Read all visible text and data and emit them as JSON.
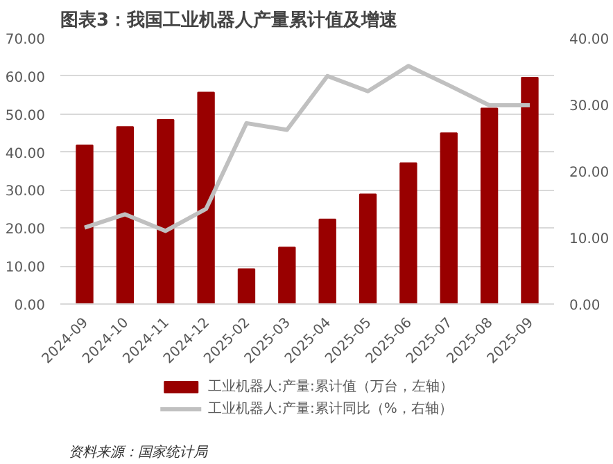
{
  "chart_data": {
    "type": "bar",
    "title": "图表3：我国工业机器人产量累计值及增速",
    "categories": [
      "2024-09",
      "2024-10",
      "2024-11",
      "2024-12",
      "2025-02",
      "2025-03",
      "2025-04",
      "2025-05",
      "2025-06",
      "2025-07",
      "2025-08",
      "2025-09"
    ],
    "series": [
      {
        "name": "工业机器人:产量:累计值（万台，左轴）",
        "color": "#990000",
        "values": [
          41.8,
          46.6,
          48.5,
          55.7,
          9.2,
          14.9,
          22.3,
          28.9,
          37.1,
          45.0,
          51.5,
          59.6
        ]
      },
      {
        "name": "工业机器人:产量:累计同比（%，右轴）",
        "type": "line",
        "axis": "y2",
        "color": "#c0c0c0",
        "values": [
          11.5,
          13.5,
          11.0,
          14.3,
          27.2,
          26.2,
          34.3,
          32.0,
          35.8,
          32.9,
          29.9,
          29.9
        ]
      }
    ],
    "ylim": [
      0,
      70
    ],
    "yticks": [
      {
        "value": 0,
        "label": "0.00"
      },
      {
        "value": 10,
        "label": "10.00"
      },
      {
        "value": 20,
        "label": "20.00"
      },
      {
        "value": 30,
        "label": "30.00"
      },
      {
        "value": 40,
        "label": "40.00"
      },
      {
        "value": 50,
        "label": "50.00"
      },
      {
        "value": 60,
        "label": "60.00"
      },
      {
        "value": 70,
        "label": "70.00"
      }
    ],
    "y2lim": [
      0,
      40
    ],
    "y2ticks": [
      {
        "value": 0,
        "label": "0.00"
      },
      {
        "value": 10,
        "label": "10.00"
      },
      {
        "value": 20,
        "label": "20.00"
      },
      {
        "value": 30,
        "label": "30.00"
      },
      {
        "value": 40,
        "label": "40.00"
      }
    ],
    "grid": "y",
    "legend": "bottom",
    "annotations": [
      "资料来源：国家统计局"
    ]
  }
}
